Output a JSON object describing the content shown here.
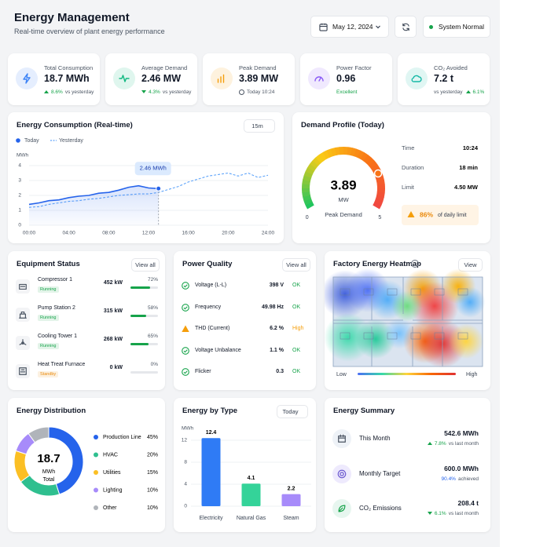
{
  "header": {
    "title": "Energy Management",
    "subtitle": "Real-time overview of plant energy performance",
    "date": "May 12, 2024",
    "status": "System Normal"
  },
  "kpis": [
    {
      "icon": "bolt",
      "color": "#3b82f6",
      "label": "Total Consumption",
      "value": "18.7 MWh",
      "trend": "up",
      "change": "8.6%",
      "note": "vs yesterday"
    },
    {
      "icon": "pulse",
      "color": "#10b981",
      "label": "Average Demand",
      "value": "2.46 MW",
      "trend": "down",
      "change": "4.3%",
      "note": "vs yesterday"
    },
    {
      "icon": "bars",
      "color": "#f59e0b",
      "label": "Peak Demand",
      "value": "3.89 MW",
      "note": "Today 10:24"
    },
    {
      "icon": "gauge",
      "color": "#8b5cf6",
      "label": "Power Factor",
      "value": "0.96",
      "note": "Excellent",
      "note_color": "#16a34a"
    },
    {
      "icon": "cloud",
      "color": "#14b8a6",
      "label": "CO₂ Avoided",
      "value": "7.2 t",
      "note": "vs yesterday",
      "trend": "up",
      "change": "6.1%"
    }
  ],
  "chart_data": [
    {
      "type": "line",
      "title": "Energy Consumption (Real-time)",
      "interval": "15m",
      "y_label": "MWh",
      "categories": [
        "00:00",
        null,
        null,
        null,
        "04:00",
        null,
        null,
        null,
        "08:00",
        null,
        null,
        null,
        "12:00",
        null,
        null,
        null,
        "16:00",
        null,
        null,
        null,
        "20:00",
        null,
        null,
        null,
        "24:00"
      ],
      "series": [
        {
          "name": "Today",
          "color": "#2563eb",
          "values": [
            1.4,
            1.5,
            1.65,
            1.7,
            1.85,
            1.95,
            2.0,
            2.15,
            2.2,
            2.35,
            2.55,
            2.65,
            2.5,
            2.46,
            null,
            null,
            null,
            null,
            null,
            null,
            null,
            null,
            null,
            null,
            null
          ]
        },
        {
          "name": "Yesterday",
          "color": "#60a5fa",
          "style": "dashed",
          "values": [
            1.2,
            1.25,
            1.4,
            1.5,
            1.6,
            1.65,
            1.75,
            1.8,
            1.9,
            2.0,
            2.05,
            2.1,
            2.1,
            2.2,
            2.4,
            2.6,
            2.9,
            3.1,
            3.3,
            3.4,
            3.5,
            3.3,
            3.5,
            3.2,
            3.35
          ]
        }
      ],
      "annotation": "2.46 MWh",
      "ylim": [
        0,
        4
      ],
      "yticks": [
        0,
        1,
        2,
        3,
        4
      ],
      "grid": true
    },
    {
      "type": "gauge",
      "title": "Demand Profile (Today)",
      "value": 3.89,
      "unit": "MW",
      "label": "Peak Demand",
      "range": [
        0,
        5
      ],
      "ticks": [
        0,
        5
      ],
      "details": [
        {
          "label": "Time",
          "value": "10:24"
        },
        {
          "label": "Duration",
          "value": "18 min"
        },
        {
          "label": "Limit",
          "value": "4.50 MW"
        }
      ],
      "limit_share": "86%",
      "limit_note": "of daily limit"
    },
    {
      "type": "donut",
      "title": "Energy Distribution",
      "total": 18.7,
      "unit": "MWh",
      "total_label": "Total",
      "categories": [
        "Production Line",
        "HVAC",
        "Utilities",
        "Lighting",
        "Other"
      ],
      "values": [
        45,
        20,
        15,
        10,
        10
      ],
      "value_labels": [
        "45%",
        "20%",
        "15%",
        "10%",
        "10%"
      ],
      "colors": [
        "#2563eb",
        "#2fbf8f",
        "#fbbf24",
        "#a78bfa",
        "#b0b4ba"
      ]
    },
    {
      "type": "bar",
      "title": "Energy by Type",
      "period": "Today",
      "y_label": "MWh",
      "categories": [
        "Electricity",
        "Natural Gas",
        "Steam"
      ],
      "values": [
        12.4,
        4.1,
        2.2
      ],
      "colors": [
        "#2f7bf5",
        "#34d399",
        "#a78bfa"
      ],
      "ylim": [
        0,
        13
      ],
      "yticks": [
        0,
        4,
        8,
        12
      ]
    }
  ],
  "equipment": {
    "title": "Equipment Status",
    "action": "View all",
    "items": [
      {
        "name": "Compressor 1",
        "status": "Running",
        "status_color": "#16a34a",
        "power": "452 kW",
        "load": {
          "value": 72,
          "label": "72%"
        }
      },
      {
        "name": "Pump Station 2",
        "status": "Running",
        "status_color": "#16a34a",
        "power": "315 kW",
        "load": {
          "value": 58,
          "label": "58%"
        }
      },
      {
        "name": "Cooling Tower 1",
        "status": "Running",
        "status_color": "#16a34a",
        "power": "268 kW",
        "load": {
          "value": 65,
          "label": "65%"
        }
      },
      {
        "name": "Heat Treat Furnace",
        "status": "Standby",
        "status_color": "#ea8a0c",
        "power": "0 kW",
        "load": {
          "value": 0,
          "label": "0%"
        }
      }
    ]
  },
  "power_quality": {
    "title": "Power Quality",
    "action": "View all",
    "items": [
      {
        "icon": "check",
        "color": "#16a34a",
        "name": "Voltage (L-L)",
        "value": "398 V",
        "status": "OK"
      },
      {
        "icon": "check",
        "color": "#16a34a",
        "name": "Frequency",
        "value": "49.98 Hz",
        "status": "OK"
      },
      {
        "icon": "warning",
        "color": "#f59e0b",
        "name": "THD (Current)",
        "value": "6.2 %",
        "status": "High"
      },
      {
        "icon": "check",
        "color": "#16a34a",
        "name": "Voltage Unbalance",
        "value": "1.1 %",
        "status": "OK"
      },
      {
        "icon": "check",
        "color": "#16a34a",
        "name": "Flicker",
        "value": "0.3",
        "status": "OK"
      }
    ]
  },
  "heatmap": {
    "title": "Factory Energy Heatmap",
    "action": "View",
    "low": "Low",
    "high": "High"
  },
  "summary": {
    "title": "Energy Summary",
    "items": [
      {
        "icon": "calendar",
        "label": "This Month",
        "value": "542.6 MWh",
        "trend": "up",
        "change": "7.8%",
        "change_color": "#16a34a",
        "note": "vs last month"
      },
      {
        "icon": "target",
        "label": "Monthly Target",
        "value": "600.0 MWh",
        "change": "90.4%",
        "change_color": "#2563eb",
        "note": "achieved"
      },
      {
        "icon": "leaf",
        "label": "CO₂ Emissions",
        "value": "208.4 t",
        "trend": "down",
        "change": "6.1%",
        "change_color": "#16a34a",
        "note": "vs last month"
      }
    ]
  }
}
